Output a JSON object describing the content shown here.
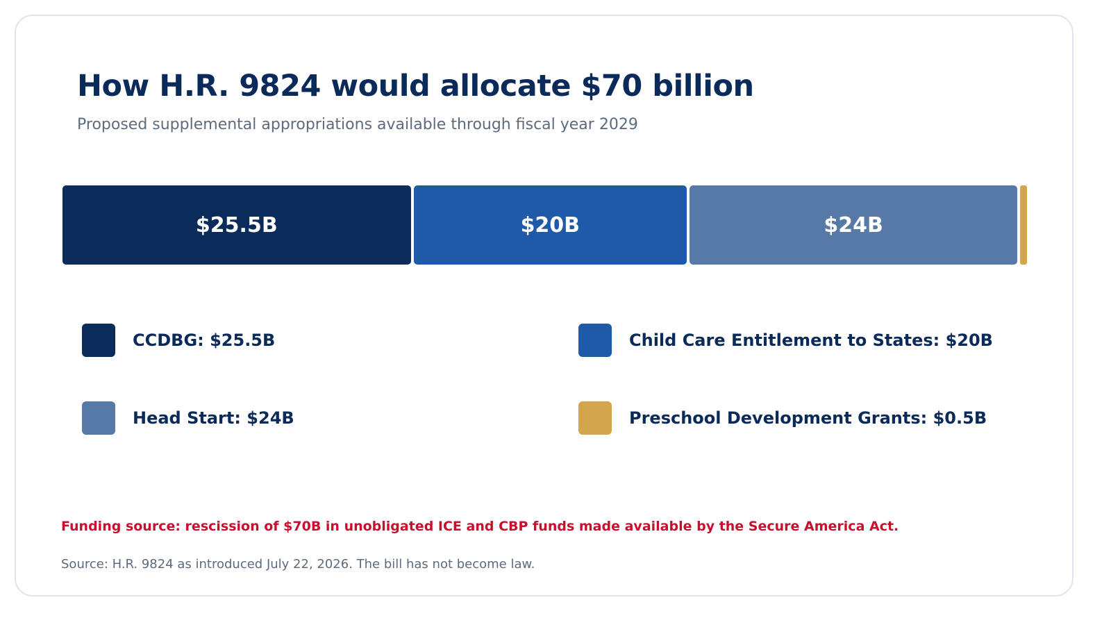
{
  "chart_data": {
    "type": "bar",
    "orientation": "horizontal-stacked",
    "title": "How H.R. 9824 would allocate $70 billion",
    "subtitle": "Proposed supplemental appropriations available through fiscal year 2029",
    "categories": [
      "CCDBG",
      "Child Care Entitlement to States",
      "Head Start",
      "Preschool Development Grants"
    ],
    "values": [
      25.5,
      20,
      24,
      0.5
    ],
    "total": 70,
    "bar_labels": [
      "$25.5B",
      "$20B",
      "$24B",
      ""
    ],
    "legend": [
      {
        "label": "CCDBG: $25.5B",
        "color": "#0b2b5b"
      },
      {
        "label": "Child Care Entitlement to States: $20B",
        "color": "#1f5aa8"
      },
      {
        "label": "Head Start: $24B",
        "color": "#5679a8"
      },
      {
        "label": "Preschool Development Grants: $0.5B",
        "color": "#d4a64b"
      }
    ],
    "legend_placement": "bottom",
    "grid": false,
    "xlabel": "",
    "ylabel": ""
  },
  "notes": {
    "funding": "Funding source: rescission of $70B in unobligated ICE and CBP funds made available by the Secure America Act.",
    "source": "Source: H.R. 9824 as introduced July 22, 2026. The bill has not become law."
  },
  "colors": {
    "title": "#0a2a5a",
    "subtitle": "#5d6b7d",
    "funding_note": "#c8102e",
    "card_border": "#dde5ee"
  }
}
